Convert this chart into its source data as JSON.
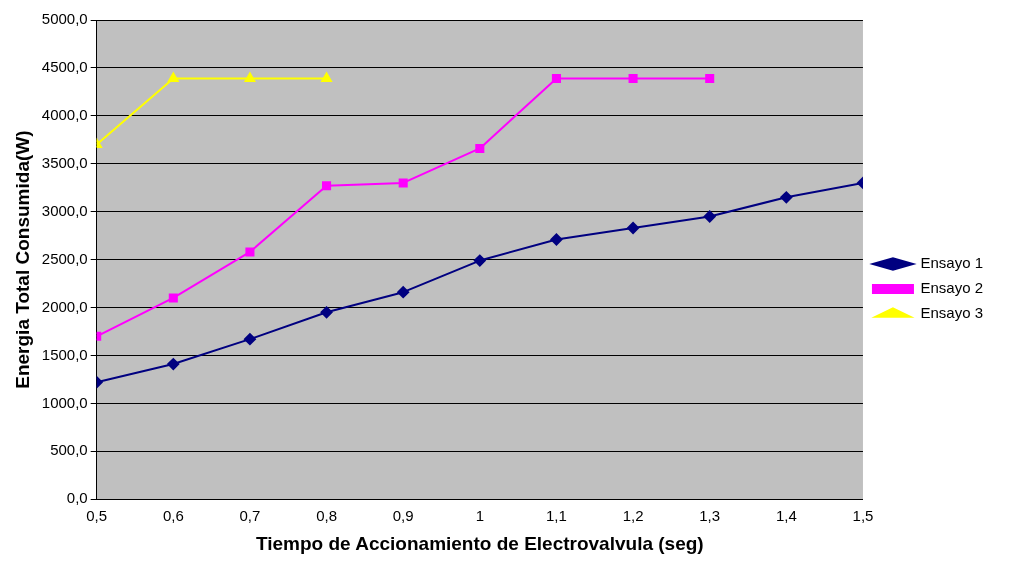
{
  "chart_data": {
    "type": "line",
    "xlabel": "Tiempo de Accionamiento de Electrovalvula (seg)",
    "ylabel": "Energia Total Consumida(W)",
    "xlim": [
      0.5,
      1.5
    ],
    "xticks": [
      {
        "value": 0.5,
        "label": "0,5"
      },
      {
        "value": 0.6,
        "label": "0,6"
      },
      {
        "value": 0.7,
        "label": "0,7"
      },
      {
        "value": 0.8,
        "label": "0,8"
      },
      {
        "value": 0.9,
        "label": "0,9"
      },
      1,
      {
        "value": 1.1,
        "label": "1,1"
      },
      {
        "value": 1.2,
        "label": "1,2"
      },
      {
        "value": 1.3,
        "label": "1,3"
      },
      {
        "value": 1.4,
        "label": "1,4"
      },
      {
        "value": 1.5,
        "label": "1,5"
      }
    ],
    "ylim": [
      0,
      5000
    ],
    "yticks": [
      {
        "value": 0,
        "label": "0,0"
      },
      {
        "value": 500,
        "label": "500,0"
      },
      {
        "value": 1000,
        "label": "1000,0"
      },
      {
        "value": 1500,
        "label": "1500,0"
      },
      {
        "value": 2000,
        "label": "2000,0"
      },
      {
        "value": 2500,
        "label": "2500,0"
      },
      {
        "value": 3000,
        "label": "3000,0"
      },
      {
        "value": 3500,
        "label": "3500,0"
      },
      {
        "value": 4000,
        "label": "4000,0"
      },
      {
        "value": 4500,
        "label": "4500,0"
      },
      {
        "value": 5000,
        "label": "5000,0"
      }
    ],
    "grid": "y",
    "legend": "right",
    "series": [
      {
        "name": "Ensayo 1",
        "color": "#000080",
        "marker": "diamond",
        "x": [
          0.5,
          0.6,
          0.7,
          0.8,
          0.9,
          1.0,
          1.1,
          1.2,
          1.3,
          1.4,
          1.5
        ],
        "values": [
          1220,
          1410,
          1670,
          1950,
          2160,
          2490,
          2710,
          2830,
          2950,
          3150,
          3300
        ]
      },
      {
        "name": "Ensayo 2",
        "color": "#ff00ff",
        "marker": "square",
        "x": [
          0.5,
          0.6,
          0.7,
          0.8,
          0.9,
          1.0,
          1.1,
          1.2,
          1.3
        ],
        "values": [
          1700,
          2100,
          2580,
          3270,
          3300,
          3660,
          4390,
          4390,
          4390
        ]
      },
      {
        "name": "Ensayo 3",
        "color": "#ffff00",
        "marker": "triangle",
        "x": [
          0.5,
          0.6,
          0.7,
          0.8
        ],
        "values": [
          3700,
          4390,
          4390,
          4390
        ]
      }
    ]
  }
}
